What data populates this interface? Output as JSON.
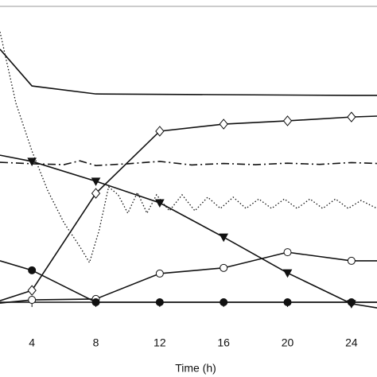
{
  "chart_data": {
    "type": "line",
    "x_label": "Time (h)",
    "xlim": [
      2,
      25.6
    ],
    "xticks": [
      4,
      8,
      12,
      16,
      20,
      24
    ],
    "ylim": [
      -5,
      100
    ],
    "series": [
      {
        "color": "#111111",
        "marker": "none",
        "dash": "solid",
        "x": [
          2,
          4,
          8,
          24,
          25.6
        ],
        "values": [
          85.5,
          73.1,
          70.4,
          69.9,
          69.9
        ]
      },
      {
        "color": "#111111",
        "marker": "diamond",
        "dash": "solid",
        "x": [
          2,
          4,
          8,
          12,
          16,
          20,
          24,
          25.6
        ],
        "values": [
          0.5,
          4.0,
          36.8,
          57.8,
          60.2,
          61.3,
          62.6,
          62.9
        ]
      },
      {
        "color": "#111111",
        "marker": "triangle",
        "dash": "solid",
        "x": [
          2,
          4,
          8,
          12,
          16,
          20,
          24,
          25.6
        ],
        "values": [
          49.7,
          47.6,
          40.9,
          33.6,
          22.0,
          9.9,
          -0.5,
          -1.9
        ]
      },
      {
        "color": "#111111",
        "marker": "open-circle",
        "dash": "solid",
        "x": [
          2,
          4,
          8,
          12,
          16,
          20,
          24,
          25.6
        ],
        "values": [
          -0.3,
          0.8,
          1.1,
          9.7,
          11.6,
          16.9,
          14.0,
          14.0
        ]
      },
      {
        "color": "#111111",
        "marker": "filled-circle",
        "dash": "solid",
        "x": [
          2,
          4,
          8,
          12,
          16,
          20,
          24,
          25.6
        ],
        "values": [
          14.0,
          10.8,
          0,
          0,
          0,
          0,
          0,
          0
        ]
      },
      {
        "color": "#111111",
        "marker": "none",
        "dash": "dashdot",
        "x": [
          2,
          4,
          6,
          7,
          8,
          10,
          12,
          14,
          16,
          18,
          20,
          22,
          24,
          25.6
        ],
        "values": [
          47.3,
          46.8,
          46.5,
          47.8,
          46.2,
          46.8,
          47.6,
          46.4,
          46.9,
          46.5,
          47.0,
          46.6,
          47.2,
          46.9
        ]
      },
      {
        "color": "#111111",
        "marker": "none",
        "dash": "dotted",
        "x": [
          2,
          3,
          4,
          5,
          6,
          7,
          7.6,
          8.2,
          8.8,
          9.4,
          10,
          10.6,
          11.2,
          11.8,
          12.6,
          13.4,
          14.2,
          15,
          15.8,
          16.6,
          17.4,
          18.2,
          19,
          19.8,
          20.6,
          21.4,
          22.2,
          23,
          23.8,
          24.6,
          25.6
        ],
        "values": [
          91.4,
          67.2,
          51.1,
          37.6,
          26.9,
          18.8,
          13.4,
          24.2,
          39.0,
          36.3,
          30.1,
          37.1,
          30.1,
          36.3,
          30.9,
          36.3,
          30.9,
          35.5,
          31.7,
          35.5,
          31.7,
          34.9,
          31.7,
          34.9,
          31.7,
          34.9,
          31.7,
          34.9,
          31.7,
          34.4,
          31.7
        ]
      }
    ]
  }
}
